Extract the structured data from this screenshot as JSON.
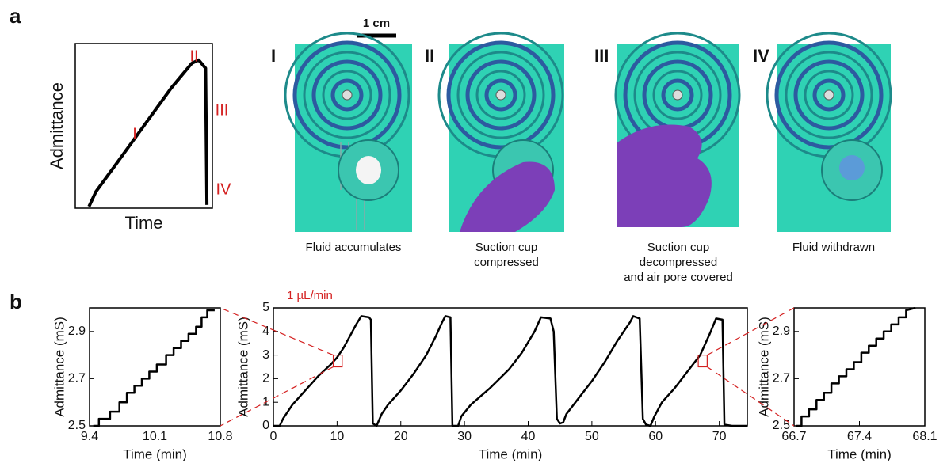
{
  "figure": {
    "panel_labels": [
      "a",
      "b"
    ],
    "scale_bar": "1 cm",
    "photos": [
      {
        "label": "I",
        "caption": [
          "Fluid accumulates"
        ]
      },
      {
        "label": "II",
        "caption": [
          "Suction cup",
          "compressed"
        ]
      },
      {
        "label": "III",
        "caption": [
          "Suction cup",
          "decompressed",
          "and air pore covered"
        ]
      },
      {
        "label": "IV",
        "caption": [
          "Fluid withdrawn"
        ]
      }
    ]
  },
  "chart_data": [
    {
      "type": "line",
      "xlabel": "Time",
      "ylabel": "Admittance",
      "color": "#000000",
      "x": [
        0.1,
        0.15,
        0.3,
        0.5,
        0.7,
        0.85,
        0.9,
        0.93,
        0.95,
        0.96
      ],
      "values": [
        0.01,
        0.1,
        0.27,
        0.5,
        0.73,
        0.88,
        0.9,
        0.87,
        0.85,
        0.02
      ],
      "xlim": [
        0,
        1
      ],
      "ylim": [
        0,
        1
      ],
      "annotations": [
        "I",
        "II",
        "III",
        "IV"
      ],
      "annotation_color": "#d42020"
    },
    {
      "type": "line",
      "xlabel": "Time (min)",
      "ylabel": "Admittance (mS)",
      "color": "#000000",
      "annotations": [
        "1 µL/min"
      ],
      "annotation_color": "#d42020",
      "x": [
        0,
        1,
        1.5,
        3,
        5,
        7,
        9,
        10,
        11,
        12,
        13,
        13.8,
        15,
        15.3,
        15.6,
        16.2,
        17,
        18,
        20,
        22,
        24,
        25.5,
        26.5,
        27,
        27.8,
        28.1,
        29,
        29.5,
        31,
        34,
        37,
        39,
        41,
        42,
        43.5,
        44,
        44.5,
        45,
        45.5,
        46,
        48,
        50,
        52,
        54,
        56,
        56.5,
        57.5,
        58,
        58.5,
        59.2,
        59.8,
        61,
        63,
        65,
        67,
        68.5,
        69.5,
        70.5,
        70.8,
        72,
        74.4
      ],
      "values": [
        0,
        0,
        0.3,
        0.9,
        1.5,
        2.1,
        2.6,
        2.9,
        3.3,
        3.8,
        4.3,
        4.65,
        4.6,
        4.5,
        0.1,
        0,
        0.5,
        0.9,
        1.5,
        2.2,
        3.0,
        3.8,
        4.4,
        4.65,
        4.6,
        0,
        0,
        0.4,
        0.9,
        1.6,
        2.4,
        3.1,
        4.0,
        4.6,
        4.55,
        4.0,
        0.3,
        0.1,
        0.15,
        0.5,
        1.2,
        1.9,
        2.7,
        3.6,
        4.4,
        4.65,
        4.55,
        0.3,
        0.05,
        0,
        0.4,
        1.0,
        1.6,
        2.3,
        3.0,
        3.9,
        4.55,
        4.5,
        0.05,
        0,
        0
      ],
      "xlim": [
        0,
        74.4
      ],
      "ylim": [
        0,
        5
      ],
      "xticks": [
        0,
        10,
        20,
        30,
        40,
        50,
        60,
        70
      ],
      "yticks": [
        0,
        1,
        2,
        3,
        4,
        5
      ]
    },
    {
      "type": "line",
      "xlabel": "Time (min)",
      "ylabel": "Admittance (mS)",
      "color": "#000000",
      "x": [
        9.44,
        9.5,
        9.5,
        9.62,
        9.62,
        9.72,
        9.72,
        9.8,
        9.8,
        9.88,
        9.88,
        9.96,
        9.96,
        10.04,
        10.04,
        10.12,
        10.12,
        10.22,
        10.22,
        10.3,
        10.3,
        10.38,
        10.38,
        10.46,
        10.46,
        10.54,
        10.54,
        10.6,
        10.6,
        10.66,
        10.66,
        10.74
      ],
      "values": [
        2.5,
        2.5,
        2.53,
        2.53,
        2.56,
        2.56,
        2.6,
        2.6,
        2.64,
        2.64,
        2.67,
        2.67,
        2.7,
        2.7,
        2.73,
        2.73,
        2.76,
        2.76,
        2.8,
        2.8,
        2.83,
        2.83,
        2.86,
        2.86,
        2.89,
        2.89,
        2.92,
        2.92,
        2.96,
        2.96,
        2.99,
        2.99
      ],
      "xlim": [
        9.4,
        10.8
      ],
      "ylim": [
        2.5,
        3.0
      ],
      "xticks": [
        9.4,
        10.1,
        10.8
      ],
      "yticks": [
        2.5,
        2.7,
        2.9
      ]
    },
    {
      "type": "line",
      "xlabel": "Time (min)",
      "ylabel": "Admittance (mS)",
      "color": "#000000",
      "x": [
        66.72,
        66.78,
        66.78,
        66.86,
        66.86,
        66.94,
        66.94,
        67.02,
        67.02,
        67.1,
        67.1,
        67.18,
        67.18,
        67.26,
        67.26,
        67.34,
        67.34,
        67.42,
        67.42,
        67.5,
        67.5,
        67.58,
        67.58,
        67.66,
        67.66,
        67.74,
        67.74,
        67.82,
        67.82,
        67.9,
        67.9,
        68.0
      ],
      "values": [
        2.5,
        2.5,
        2.54,
        2.54,
        2.57,
        2.57,
        2.61,
        2.61,
        2.64,
        2.64,
        2.68,
        2.68,
        2.71,
        2.71,
        2.74,
        2.74,
        2.77,
        2.77,
        2.81,
        2.81,
        2.84,
        2.84,
        2.87,
        2.87,
        2.9,
        2.9,
        2.93,
        2.93,
        2.96,
        2.96,
        2.99,
        3.0
      ],
      "xlim": [
        66.7,
        68.1
      ],
      "ylim": [
        2.5,
        3.0
      ],
      "xticks": [
        66.7,
        67.4,
        68.1
      ],
      "yticks": [
        2.5,
        2.7,
        2.9
      ]
    }
  ]
}
